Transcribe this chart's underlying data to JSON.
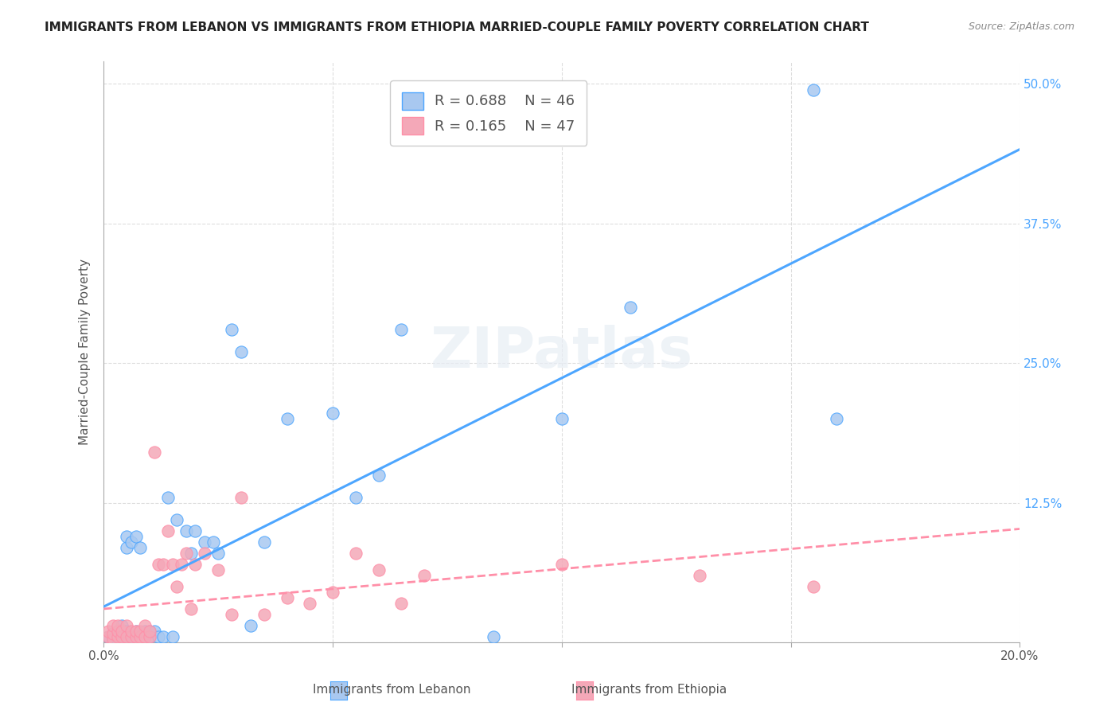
{
  "title": "IMMIGRANTS FROM LEBANON VS IMMIGRANTS FROM ETHIOPIA MARRIED-COUPLE FAMILY POVERTY CORRELATION CHART",
  "source": "Source: ZipAtlas.com",
  "xlabel_bottom": "",
  "ylabel": "Married-Couple Family Poverty",
  "xlim": [
    0.0,
    0.2
  ],
  "ylim": [
    0.0,
    0.52
  ],
  "xticks": [
    0.0,
    0.05,
    0.1,
    0.15,
    0.2
  ],
  "xticklabels": [
    "0.0%",
    "",
    "",
    "",
    "20.0%"
  ],
  "yticks": [
    0.0,
    0.125,
    0.25,
    0.375,
    0.5
  ],
  "yticklabels": [
    "",
    "12.5%",
    "25.0%",
    "37.5%",
    "50.0%"
  ],
  "lebanon_R": 0.688,
  "lebanon_N": 46,
  "ethiopia_R": 0.165,
  "ethiopia_N": 47,
  "lebanon_color": "#a8c8f0",
  "ethiopia_color": "#f4a8b8",
  "lebanon_line_color": "#4da6ff",
  "ethiopia_line_color": "#ff8fa8",
  "legend_label_lebanon": "Immigrants from Lebanon",
  "legend_label_ethiopia": "Immigrants from Ethiopia",
  "watermark": "ZIPatlas",
  "lebanon_x": [
    0.001,
    0.002,
    0.002,
    0.003,
    0.003,
    0.003,
    0.004,
    0.004,
    0.004,
    0.005,
    0.005,
    0.005,
    0.006,
    0.006,
    0.007,
    0.007,
    0.008,
    0.009,
    0.01,
    0.01,
    0.011,
    0.012,
    0.013,
    0.014,
    0.015,
    0.016,
    0.018,
    0.019,
    0.02,
    0.022,
    0.024,
    0.025,
    0.028,
    0.03,
    0.032,
    0.035,
    0.04,
    0.05,
    0.055,
    0.06,
    0.065,
    0.085,
    0.1,
    0.115,
    0.155,
    0.16
  ],
  "lebanon_y": [
    0.005,
    0.003,
    0.008,
    0.002,
    0.006,
    0.01,
    0.005,
    0.01,
    0.015,
    0.01,
    0.085,
    0.095,
    0.005,
    0.09,
    0.01,
    0.095,
    0.085,
    0.01,
    0.005,
    0.01,
    0.01,
    0.005,
    0.005,
    0.13,
    0.005,
    0.11,
    0.1,
    0.08,
    0.1,
    0.09,
    0.09,
    0.08,
    0.28,
    0.26,
    0.015,
    0.09,
    0.2,
    0.205,
    0.13,
    0.15,
    0.28,
    0.005,
    0.2,
    0.3,
    0.495,
    0.2
  ],
  "ethiopia_x": [
    0.001,
    0.001,
    0.002,
    0.002,
    0.002,
    0.003,
    0.003,
    0.003,
    0.004,
    0.004,
    0.005,
    0.005,
    0.006,
    0.006,
    0.007,
    0.007,
    0.008,
    0.008,
    0.009,
    0.009,
    0.01,
    0.01,
    0.011,
    0.012,
    0.013,
    0.014,
    0.015,
    0.016,
    0.017,
    0.018,
    0.019,
    0.02,
    0.022,
    0.025,
    0.028,
    0.03,
    0.035,
    0.04,
    0.045,
    0.05,
    0.055,
    0.06,
    0.065,
    0.07,
    0.1,
    0.13,
    0.155
  ],
  "ethiopia_y": [
    0.005,
    0.01,
    0.003,
    0.008,
    0.015,
    0.005,
    0.01,
    0.015,
    0.005,
    0.01,
    0.005,
    0.015,
    0.005,
    0.01,
    0.005,
    0.01,
    0.005,
    0.01,
    0.005,
    0.015,
    0.005,
    0.01,
    0.17,
    0.07,
    0.07,
    0.1,
    0.07,
    0.05,
    0.07,
    0.08,
    0.03,
    0.07,
    0.08,
    0.065,
    0.025,
    0.13,
    0.025,
    0.04,
    0.035,
    0.045,
    0.08,
    0.065,
    0.035,
    0.06,
    0.07,
    0.06,
    0.05
  ]
}
